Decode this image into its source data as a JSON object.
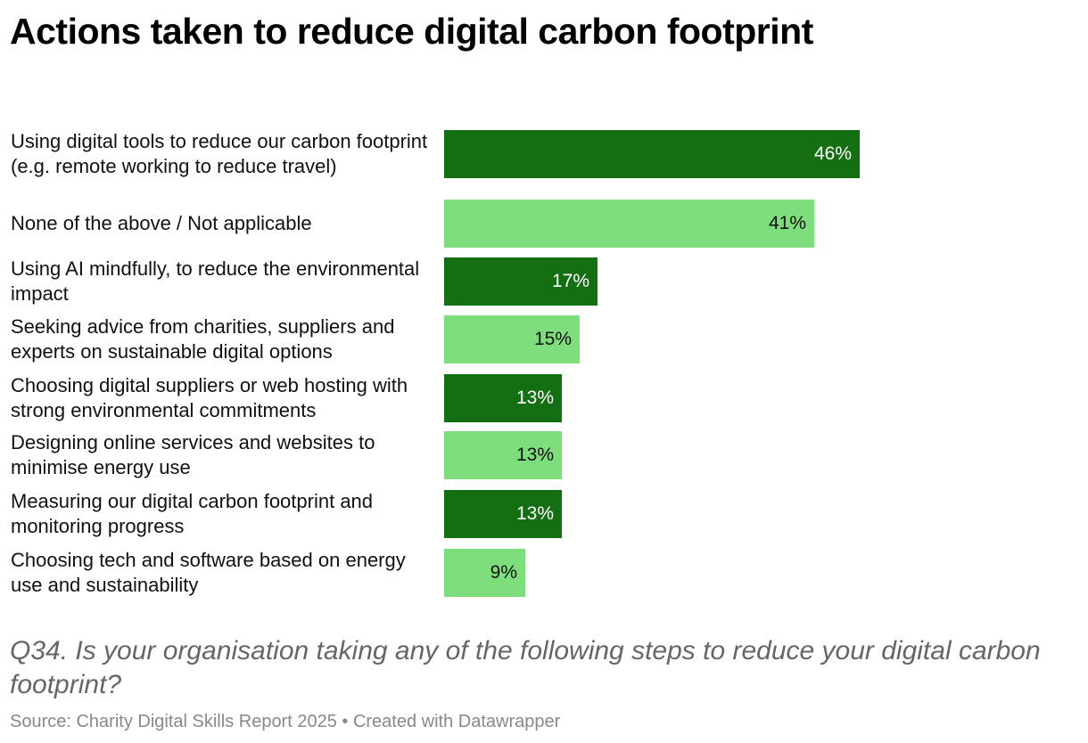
{
  "header": {
    "title": "Actions taken to reduce digital carbon footprint"
  },
  "footer": {
    "question": "Q34. Is your organisation taking any of the following steps to reduce your digital carbon footprint?",
    "source": "Source: Charity Digital Skills Report 2025 • Created with Datawrapper"
  },
  "colors": {
    "dark_green": "#146f12",
    "light_green": "#7ede7c",
    "label_on_dark": "#ffffff",
    "label_on_light": "#111111"
  },
  "chart_data": {
    "type": "bar",
    "orientation": "horizontal",
    "title": "Actions taken to reduce digital carbon footprint",
    "categories": [
      "Using digital tools to reduce our carbon footprint (e.g. remote working to reduce travel)",
      "None of the above / Not applicable",
      "Using AI mindfully, to reduce the environmental impact",
      "Seeking advice from charities, suppliers and experts on sustainable digital options",
      "Choosing digital suppliers or web hosting with strong environmental commitments",
      "Designing online services and websites to minimise energy use",
      "Measuring our digital carbon footprint and monitoring progress",
      "Choosing tech and software based on energy use and sustainability"
    ],
    "values": [
      46,
      41,
      17,
      15,
      13,
      13,
      13,
      9
    ],
    "value_labels": [
      "46%",
      "41%",
      "17%",
      "15%",
      "13%",
      "13%",
      "13%",
      "9%"
    ],
    "bar_colors": [
      "#146f12",
      "#7ede7c",
      "#146f12",
      "#7ede7c",
      "#146f12",
      "#7ede7c",
      "#146f12",
      "#7ede7c"
    ],
    "unit": "%",
    "xlim": [
      0,
      46
    ],
    "grid": false,
    "legend": "none"
  }
}
